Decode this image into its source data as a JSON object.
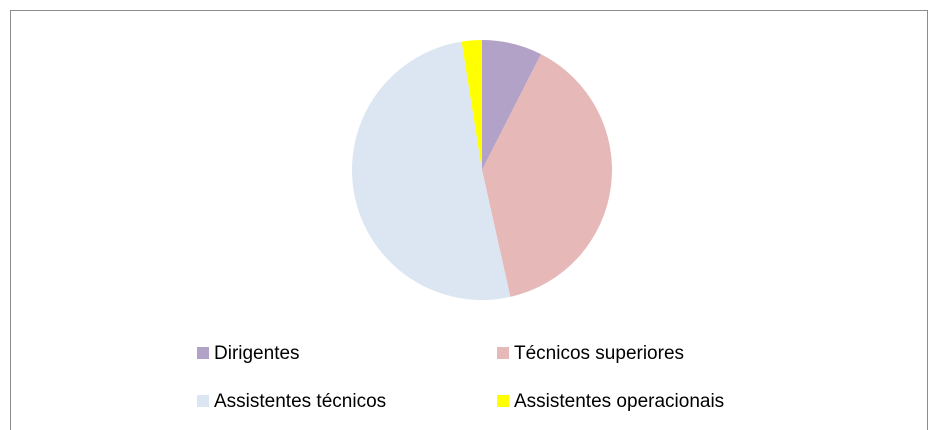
{
  "chart_data": {
    "type": "pie",
    "categories": [
      "Dirigentes",
      "Técnicos superiores",
      "Assistentes técnicos",
      "Assistentes operacionais"
    ],
    "values": [
      7.5,
      39,
      51,
      2.5
    ],
    "colors": [
      "#b3a2c7",
      "#e6b9b8",
      "#dce6f2",
      "#ffff00"
    ],
    "legend": "bottom"
  }
}
